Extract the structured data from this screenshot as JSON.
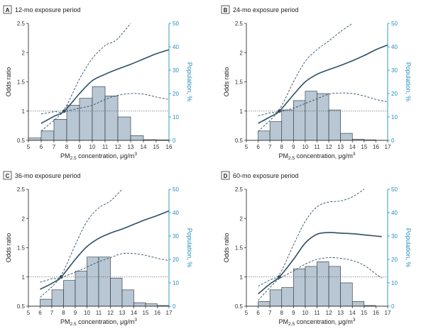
{
  "colors": {
    "axis_left": "#333333",
    "axis_right": "#1f8fbf",
    "curve": "#2f4f63",
    "bar_fill": "#b8c7d3",
    "bar_stroke": "#1f2f3a",
    "ref_line": "#6a6a6a",
    "panel_box_border": "#333333"
  },
  "chart_data": [
    {
      "type": "line+bar",
      "panel_label": "A",
      "title": "12-mo exposure period",
      "xlabel": "PM2.5 concentration, μg/m3",
      "ylabel": "Odds ratio",
      "ylabel_right": "Population, %",
      "xlim": [
        5,
        16
      ],
      "x_ticks": [
        "5",
        "6",
        "7",
        "8",
        "9",
        "10",
        "11",
        "12",
        "13",
        "14",
        "15",
        "16"
      ],
      "y_ticks_left": [
        "0.5",
        "1",
        "1.5",
        "2",
        "2.5"
      ],
      "y_ticks_right": [
        "0",
        "10",
        "20",
        "30",
        "40",
        "50"
      ],
      "reference_or": 1,
      "bars": {
        "bins": [
          [
            5,
            6
          ],
          [
            6,
            7
          ],
          [
            7,
            8
          ],
          [
            8,
            9
          ],
          [
            9,
            10
          ],
          [
            10,
            11
          ],
          [
            11,
            12
          ],
          [
            12,
            13
          ],
          [
            13,
            14
          ],
          [
            14,
            15
          ],
          [
            15,
            16
          ]
        ],
        "values": [
          1,
          4,
          9,
          15,
          18,
          23,
          19,
          10,
          2,
          0.3,
          0.2
        ]
      },
      "estimate": {
        "x": [
          6,
          7,
          7.8,
          9,
          10,
          11,
          12,
          13,
          14,
          15,
          16
        ],
        "or": [
          0.79,
          0.91,
          1.0,
          1.3,
          1.52,
          1.63,
          1.72,
          1.8,
          1.89,
          1.98,
          2.05
        ]
      },
      "ci_upper": {
        "x": [
          6,
          7,
          7.8,
          9,
          10,
          11,
          11.5,
          12,
          13
        ],
        "or": [
          0.95,
          0.99,
          1.03,
          1.55,
          1.9,
          2.12,
          2.17,
          2.24,
          2.5
        ]
      },
      "ci_lower": {
        "x": [
          6,
          7,
          7.8,
          9,
          10,
          11,
          12,
          13,
          14,
          15,
          16
        ],
        "or": [
          0.66,
          0.84,
          0.98,
          1.05,
          1.1,
          1.2,
          1.27,
          1.3,
          1.29,
          1.24,
          1.2
        ]
      }
    },
    {
      "type": "line+bar",
      "panel_label": "B",
      "title": "24-mo exposure period",
      "xlabel": "PM2.5 concentration, μg/m3",
      "ylabel": "Odds ratio",
      "ylabel_right": "Population, %",
      "xlim": [
        5,
        17
      ],
      "x_ticks": [
        "5",
        "6",
        "7",
        "8",
        "9",
        "10",
        "11",
        "12",
        "13",
        "14",
        "15",
        "16",
        "17"
      ],
      "y_ticks_left": [
        "0.5",
        "1",
        "1.5",
        "2",
        "2.5"
      ],
      "y_ticks_right": [
        "0",
        "10",
        "20",
        "30",
        "40",
        "50"
      ],
      "reference_or": 1,
      "bars": {
        "bins": [
          [
            6,
            7
          ],
          [
            7,
            8
          ],
          [
            8,
            9
          ],
          [
            9,
            10
          ],
          [
            10,
            11
          ],
          [
            11,
            12
          ],
          [
            12,
            13
          ],
          [
            13,
            14
          ],
          [
            14,
            15
          ],
          [
            15,
            16
          ]
        ],
        "values": [
          4,
          8,
          13,
          17,
          21,
          20,
          13,
          3,
          0.5,
          0.2
        ]
      },
      "estimate": {
        "x": [
          6,
          7,
          7.8,
          9,
          10,
          11,
          12,
          13,
          14,
          15,
          16,
          17
        ],
        "or": [
          0.79,
          0.9,
          1.0,
          1.28,
          1.5,
          1.63,
          1.71,
          1.78,
          1.86,
          1.95,
          2.05,
          2.13
        ]
      },
      "ci_upper": {
        "x": [
          6,
          7,
          7.8,
          9,
          10,
          11,
          12,
          13,
          14
        ],
        "or": [
          0.92,
          0.97,
          1.03,
          1.5,
          1.85,
          2.05,
          2.2,
          2.36,
          2.5
        ]
      },
      "ci_lower": {
        "x": [
          6,
          7,
          7.8,
          9,
          10,
          11,
          12,
          13,
          14,
          15,
          16,
          17
        ],
        "or": [
          0.65,
          0.84,
          0.98,
          1.05,
          1.13,
          1.21,
          1.29,
          1.31,
          1.3,
          1.26,
          1.2,
          1.16
        ]
      }
    },
    {
      "type": "line+bar",
      "panel_label": "C",
      "title": "36-mo exposure period",
      "xlabel": "PM2.5 concentration, μg/m3",
      "ylabel": "Odds ratio",
      "ylabel_right": "Population, %",
      "xlim": [
        5,
        17
      ],
      "x_ticks": [
        "5",
        "6",
        "7",
        "8",
        "9",
        "10",
        "11",
        "12",
        "13",
        "14",
        "15",
        "16",
        "17"
      ],
      "y_ticks_left": [
        "0.5",
        "1",
        "1.5",
        "2",
        "2.5"
      ],
      "y_ticks_right": [
        "0",
        "10",
        "20",
        "30",
        "40",
        "50"
      ],
      "reference_or": 1,
      "bars": {
        "bins": [
          [
            6,
            7
          ],
          [
            7,
            8
          ],
          [
            8,
            9
          ],
          [
            9,
            10
          ],
          [
            10,
            11
          ],
          [
            11,
            12
          ],
          [
            12,
            13
          ],
          [
            13,
            14
          ],
          [
            14,
            15
          ],
          [
            15,
            16
          ],
          [
            16,
            17
          ]
        ],
        "values": [
          3,
          7,
          11,
          15,
          21,
          21,
          12,
          7,
          1.5,
          1,
          0.3
        ]
      },
      "estimate": {
        "x": [
          6,
          7,
          7.8,
          9,
          10,
          11,
          12,
          13,
          14,
          15,
          16,
          17
        ],
        "or": [
          0.79,
          0.89,
          1.0,
          1.3,
          1.52,
          1.66,
          1.75,
          1.82,
          1.9,
          1.98,
          2.05,
          2.13
        ]
      },
      "ci_upper": {
        "x": [
          6,
          7,
          7.8,
          9,
          10,
          11,
          12,
          13
        ],
        "or": [
          0.91,
          0.97,
          1.03,
          1.55,
          1.95,
          2.18,
          2.3,
          2.5
        ]
      },
      "ci_lower": {
        "x": [
          6,
          7,
          7.8,
          9,
          10,
          11,
          12,
          13,
          14,
          15,
          16,
          17
        ],
        "or": [
          0.65,
          0.83,
          0.98,
          1.08,
          1.17,
          1.26,
          1.33,
          1.4,
          1.4,
          1.37,
          1.32,
          1.28
        ]
      }
    },
    {
      "type": "line+bar",
      "panel_label": "D",
      "title": "60-mo exposure period",
      "xlabel": "PM2.5 concentration, μg/m3",
      "ylabel": "Odds ratio",
      "ylabel_right": "Population, %",
      "xlim": [
        5,
        17
      ],
      "x_ticks": [
        "5",
        "6",
        "7",
        "8",
        "9",
        "10",
        "11",
        "12",
        "13",
        "14",
        "15",
        "16",
        "17"
      ],
      "y_ticks_left": [
        "0.5",
        "1",
        "1.5",
        "2",
        "2.5"
      ],
      "y_ticks_right": [
        "0",
        "10",
        "20",
        "30",
        "40",
        "50"
      ],
      "reference_or": 1,
      "bars": {
        "bins": [
          [
            6,
            7
          ],
          [
            7,
            8
          ],
          [
            8,
            9
          ],
          [
            9,
            10
          ],
          [
            10,
            11
          ],
          [
            11,
            12
          ],
          [
            12,
            13
          ],
          [
            13,
            14
          ],
          [
            14,
            15
          ],
          [
            15,
            16
          ]
        ],
        "values": [
          2,
          7,
          8,
          16,
          17,
          19,
          17,
          10,
          2,
          0.3
        ]
      },
      "estimate": {
        "x": [
          6,
          7,
          7.8,
          9,
          10,
          11,
          12,
          13,
          14,
          15,
          16,
          16.5
        ],
        "or": [
          0.71,
          0.88,
          1.0,
          1.3,
          1.58,
          1.73,
          1.76,
          1.75,
          1.74,
          1.72,
          1.7,
          1.69
        ]
      },
      "ci_upper": {
        "x": [
          6,
          7,
          7.8,
          9,
          10,
          11,
          12,
          13,
          14,
          15
        ],
        "or": [
          0.84,
          0.95,
          1.04,
          1.55,
          1.95,
          2.2,
          2.28,
          2.3,
          2.37,
          2.5
        ]
      },
      "ci_lower": {
        "x": [
          6,
          7,
          7.8,
          9,
          10,
          11,
          12,
          13,
          14,
          15,
          16,
          16.5
        ],
        "or": [
          0.6,
          0.82,
          0.97,
          1.1,
          1.22,
          1.3,
          1.33,
          1.32,
          1.28,
          1.2,
          1.05,
          0.98
        ]
      }
    }
  ]
}
